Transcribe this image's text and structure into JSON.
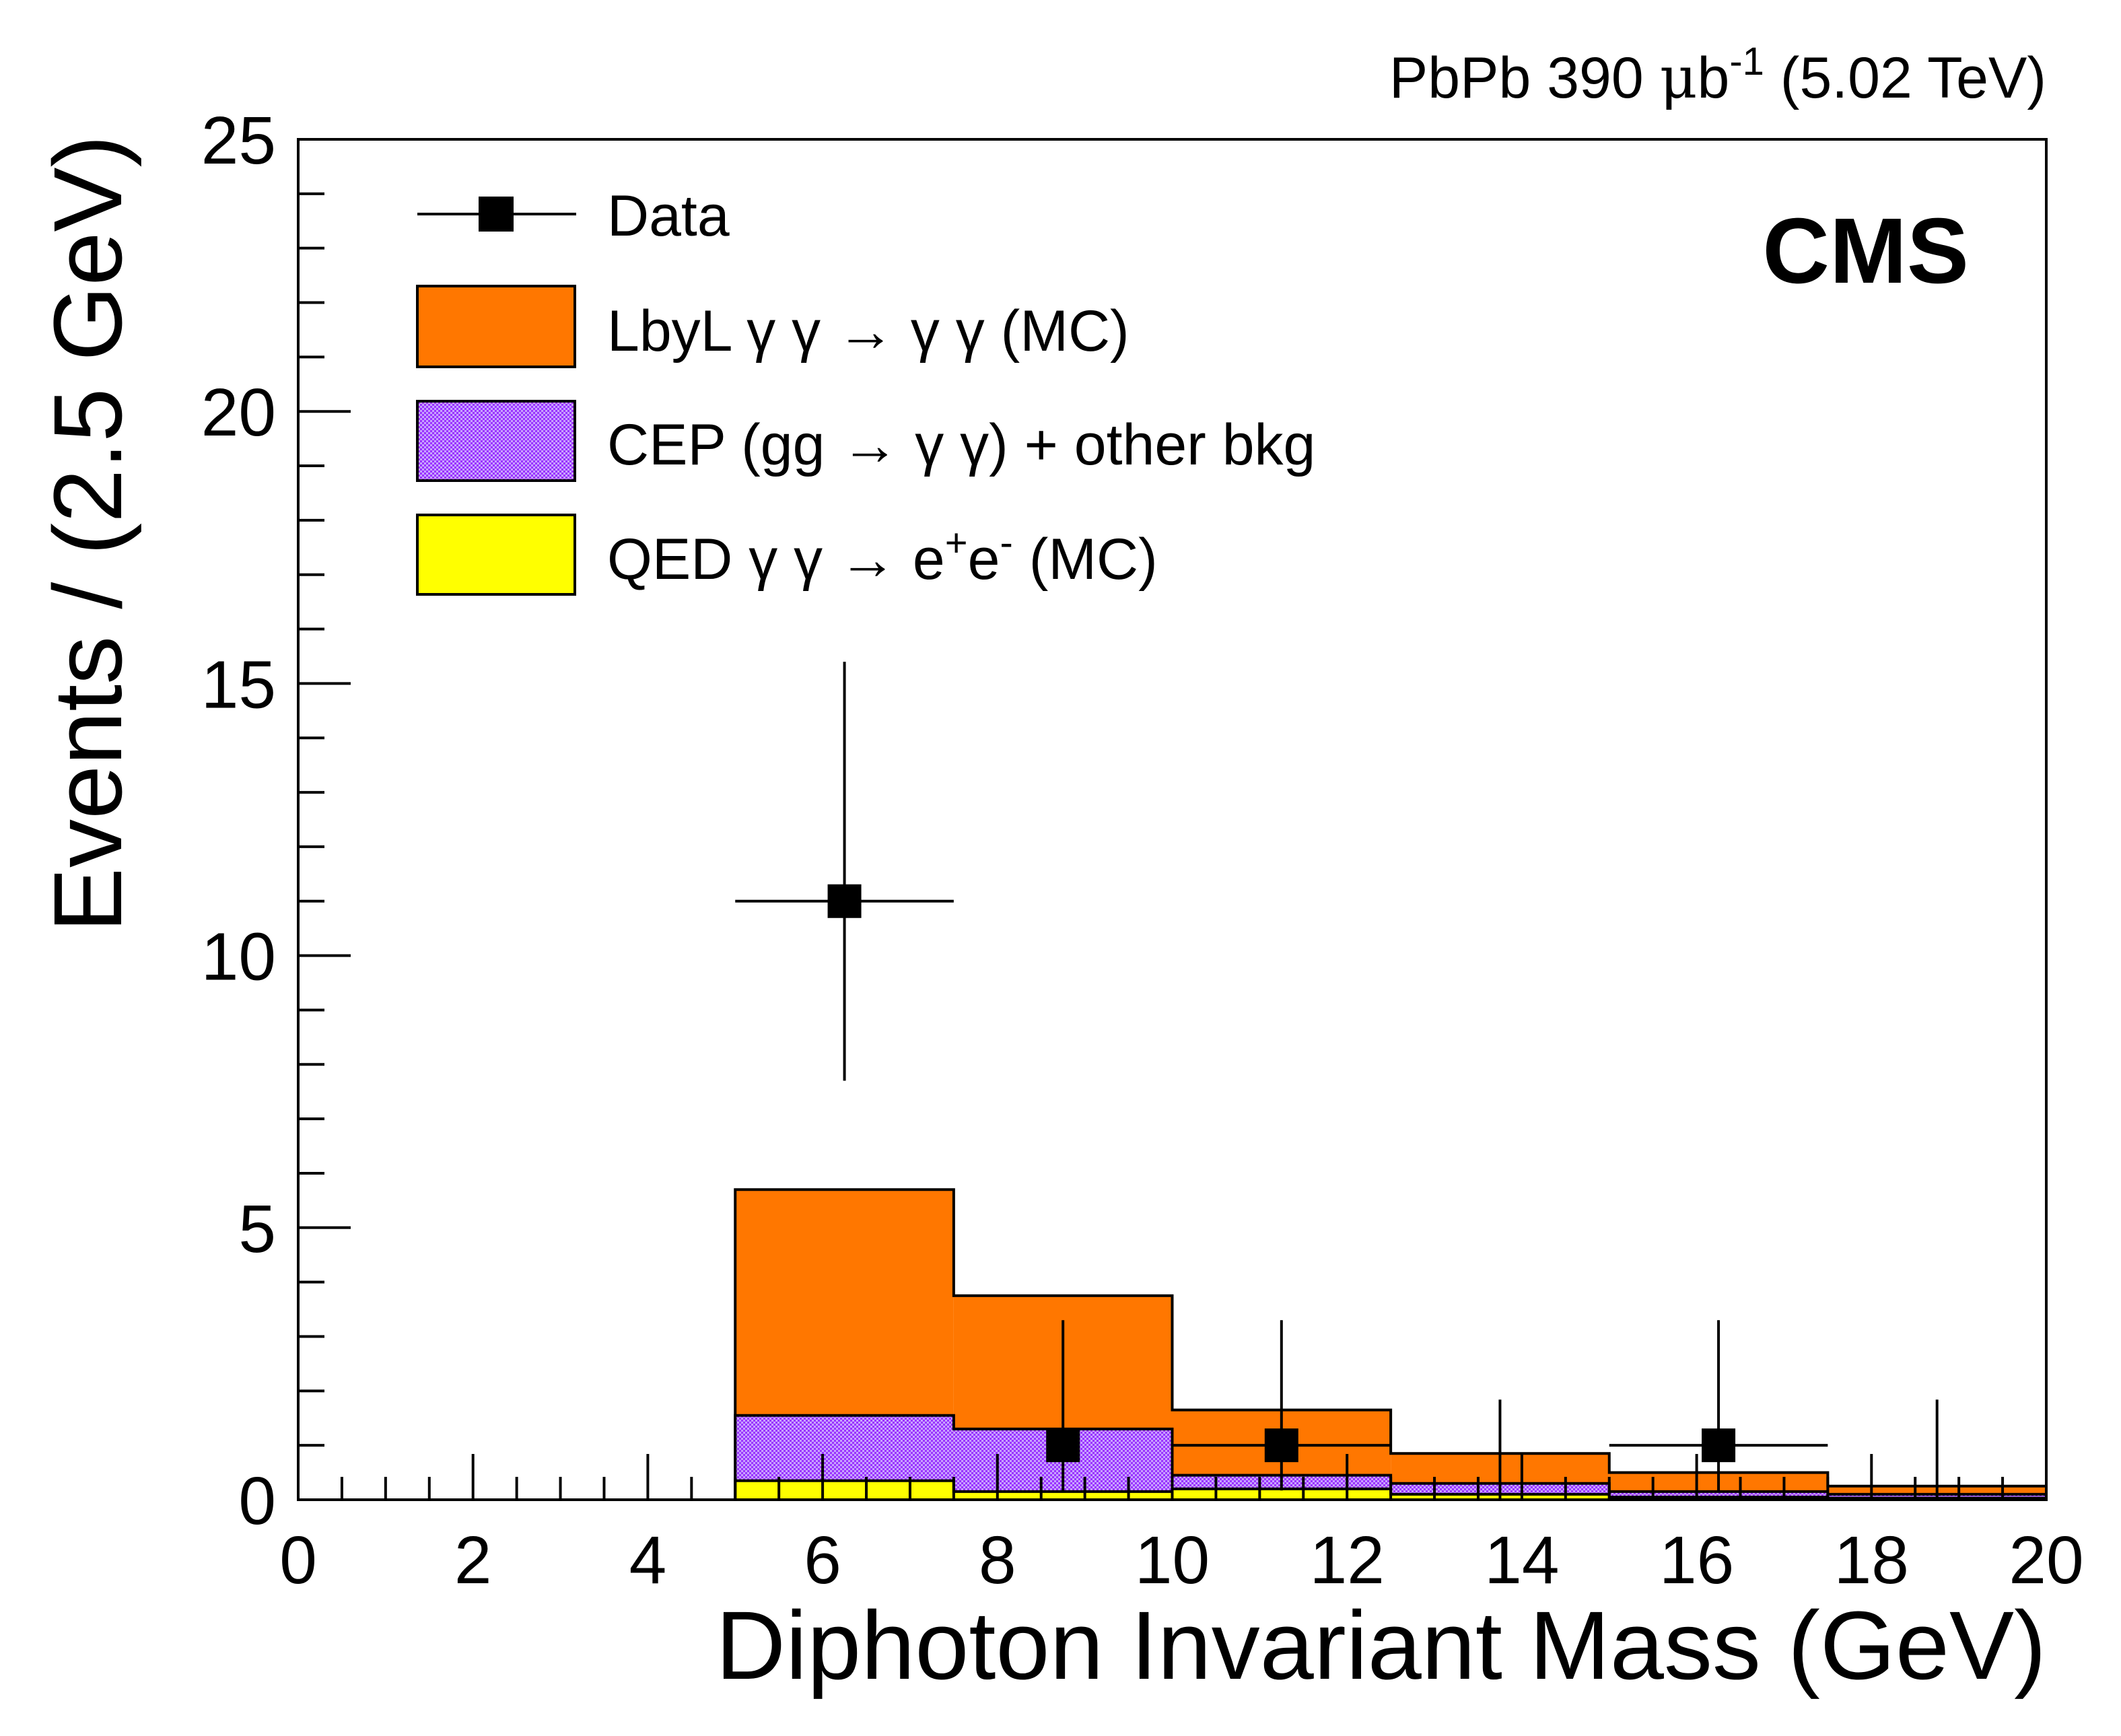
{
  "chart_data": {
    "type": "bar",
    "title": "",
    "lumi_label": {
      "prefix": "PbPb 390 ",
      "mu": "μ",
      "b": "b",
      "exponent": "-1",
      "suffix": " (5.02 TeV)"
    },
    "experiment_label": "CMS",
    "xlabel": "Diphoton Invariant Mass (GeV)",
    "ylabel": "Events / (2.5 GeV)",
    "xlim": [
      0,
      20
    ],
    "ylim": [
      0,
      25
    ],
    "x_ticks": [
      "0",
      "2",
      "4",
      "6",
      "8",
      "10",
      "12",
      "14",
      "16",
      "18",
      "20"
    ],
    "y_ticks": [
      "0",
      "5",
      "10",
      "15",
      "20",
      "25"
    ],
    "bin_edges": [
      5,
      7.5,
      10,
      12.5,
      15,
      17.5,
      20
    ],
    "stack": [
      {
        "name": "QED",
        "color": "#ffff00",
        "values": [
          0.35,
          0.15,
          0.2,
          0.1,
          0.05,
          0.03
        ]
      },
      {
        "name": "CEP",
        "color": "#bb88ff",
        "pattern_color": "#9933ff",
        "values": [
          1.2,
          1.15,
          0.25,
          0.2,
          0.1,
          0.07
        ]
      },
      {
        "name": "LbyL",
        "color": "#ff7700",
        "values": [
          4.15,
          2.45,
          1.2,
          0.55,
          0.35,
          0.15
        ]
      }
    ],
    "data_points": [
      {
        "x": 6.25,
        "y": 11,
        "xerr_low": 1.25,
        "xerr_high": 1.25,
        "yerr_low": 3.3,
        "yerr_high": 4.4
      },
      {
        "x": 8.75,
        "y": 1,
        "xerr_low": 0,
        "xerr_high": 0,
        "yerr_low": 0.83,
        "yerr_high": 2.3
      },
      {
        "x": 11.25,
        "y": 1,
        "xerr_low": 1.25,
        "xerr_high": 1.25,
        "yerr_low": 0.83,
        "yerr_high": 2.3
      },
      {
        "x": 13.75,
        "y": 0,
        "xerr_low": 0,
        "xerr_high": 0,
        "yerr_low": 0,
        "yerr_high": 1.84
      },
      {
        "x": 16.25,
        "y": 1,
        "xerr_low": 1.25,
        "xerr_high": 1.25,
        "yerr_low": 0.83,
        "yerr_high": 2.3
      },
      {
        "x": 18.75,
        "y": 0,
        "xerr_low": 0,
        "xerr_high": 0,
        "yerr_low": 0,
        "yerr_high": 1.84
      }
    ],
    "legend": {
      "position": "top-left",
      "entries": {
        "data": "Data",
        "lbyl": {
          "pre": "LbyL ",
          "mid": "γ γ → γ γ",
          "post": " (MC)"
        },
        "cep": {
          "pre": "CEP (gg → γ γ) + other bkg"
        },
        "qed": {
          "pre": "QED γ γ → e",
          "sup1": "+",
          "e2": "e",
          "sup2": "-",
          "post": " (MC)"
        }
      }
    }
  }
}
